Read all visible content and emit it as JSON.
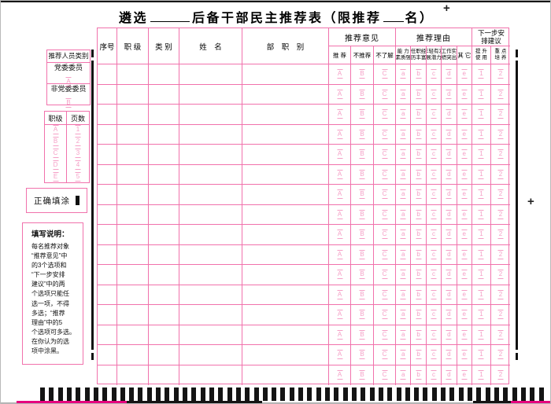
{
  "title": {
    "part1": "遴选",
    "part2": "后备干部民主推荐表（限推荐",
    "part3": "名）",
    "reg_mark_top": "+",
    "reg_mark_right": "+"
  },
  "sidebar": {
    "person_category": {
      "header": "推荐人员类别",
      "options": [
        {
          "label": "党委委员",
          "bubble": "A"
        },
        {
          "label": "非党委委员",
          "bubble": "B"
        }
      ]
    },
    "rank_page": {
      "col1_header": "职级",
      "col2_header": "页数",
      "col1_bubbles": [
        "A",
        "B",
        "C",
        "D",
        "E"
      ],
      "col2_bubbles": [
        "1",
        "2",
        "3",
        "4",
        "5"
      ]
    },
    "correct_fill_label": "正确填涂",
    "instructions": {
      "title": "填写说明：",
      "lines": [
        "每名推荐对象",
        "“推荐意见”中",
        "的3个选项和",
        "“下一步安排",
        "建议”中的两",
        "个选项只能任",
        "选一项，不得",
        "多选；“推荐",
        "理由”中的5",
        "个选项可多选。",
        "在你认为的选",
        "项中涂黑。"
      ]
    }
  },
  "table": {
    "plain_columns": [
      "序号",
      "职 级",
      "类 别",
      "姓　名",
      "部　职　别"
    ],
    "groups": [
      {
        "label": "推荐意见",
        "subs": [
          [
            "推 荐"
          ],
          [
            "不推荐"
          ],
          [
            "不了解"
          ]
        ],
        "bubbles": [
          "A",
          "B",
          "C"
        ]
      },
      {
        "label": "推荐理由",
        "subs": [
          [
            "能 力",
            "素质强"
          ],
          [
            "任职经",
            "历丰富"
          ],
          [
            "年轻有发",
            "展潜力"
          ],
          [
            "工作实",
            "绩突出"
          ],
          [
            "其 它"
          ]
        ],
        "bubbles": [
          "a",
          "b",
          "c",
          "d",
          "e"
        ]
      },
      {
        "label": "下一步安排建议",
        "label_lines": [
          "下一步安",
          "排建议"
        ],
        "subs": [
          [
            "提 升",
            "使 用"
          ],
          [
            "重 点",
            "培 养"
          ]
        ],
        "bubbles": [
          "1",
          "2"
        ]
      }
    ],
    "row_count": 16
  },
  "timing_marks": {
    "count": 57
  },
  "colors": {
    "line": "#f172ac",
    "bubble": "#f59fc6",
    "ink": "#111111",
    "edge_pink": "#e6007e"
  }
}
